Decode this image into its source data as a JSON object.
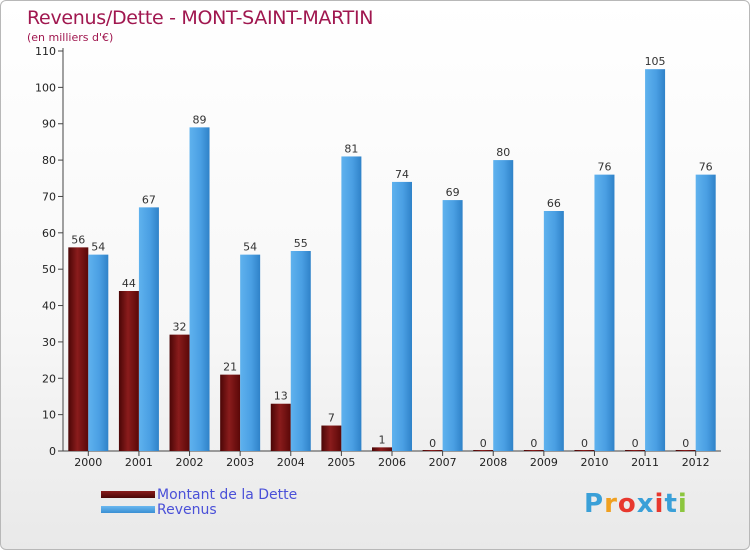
{
  "header": {
    "title": "Revenus/Dette - MONT-SAINT-MARTIN",
    "subtitle": "(en milliers d'€)"
  },
  "legend": {
    "items": [
      {
        "label": "Montant de la Dette",
        "color": "#6b0b0b"
      },
      {
        "label": "Revenus",
        "color": "#4a9fe3"
      }
    ]
  },
  "logo": {
    "text": "Proxiti",
    "letter_colors": [
      "#3aa0d8",
      "#f0a020",
      "#e8382e",
      "#3aa0d8",
      "#e8382e",
      "#3aa0d8",
      "#8cc63e"
    ]
  },
  "chart_data": {
    "type": "bar",
    "categories": [
      "2000",
      "2001",
      "2002",
      "2003",
      "2004",
      "2005",
      "2006",
      "2007",
      "2008",
      "2009",
      "2010",
      "2011",
      "2012"
    ],
    "series": [
      {
        "name": "Montant de la Dette",
        "color": "#6b0b0b",
        "values": [
          56,
          44,
          32,
          21,
          13,
          7,
          1,
          0,
          0,
          0,
          0,
          0,
          0
        ]
      },
      {
        "name": "Revenus",
        "color": "#4a9fe3",
        "values": [
          54,
          67,
          89,
          54,
          55,
          81,
          74,
          69,
          80,
          66,
          76,
          105,
          76
        ]
      }
    ],
    "ylim": [
      0,
      110
    ],
    "yticks": [
      0,
      10,
      20,
      30,
      40,
      50,
      60,
      70,
      80,
      90,
      100,
      110
    ],
    "grid": false
  }
}
